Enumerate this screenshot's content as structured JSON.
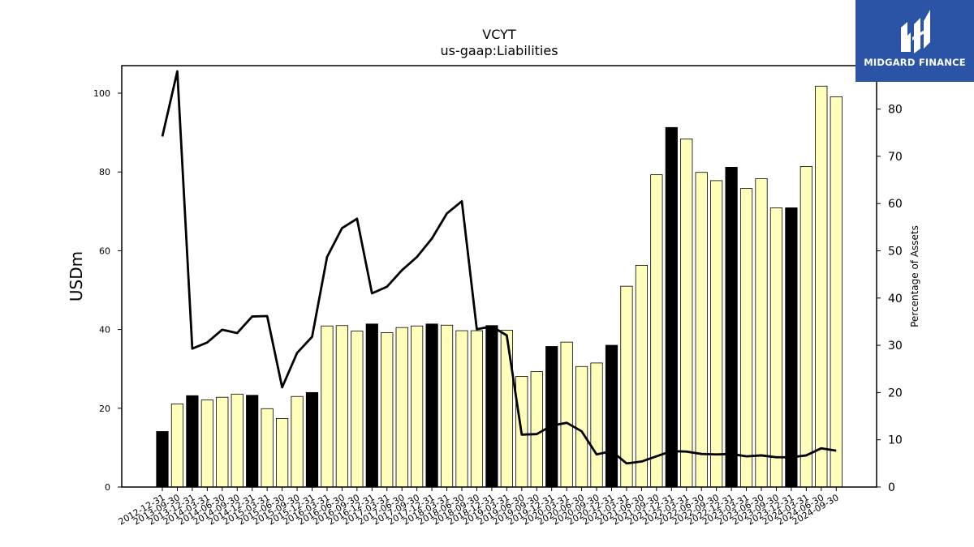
{
  "chart_data": {
    "type": "bar",
    "title": "VCYT",
    "subtitle": "us-gaap:Liabilities",
    "ylabel": "USDm",
    "y2label": "Percentage of Assets",
    "ylim": [
      0,
      107
    ],
    "y2lim": [
      0,
      89.2
    ],
    "yticks": [
      0,
      20,
      40,
      60,
      80,
      100
    ],
    "y2ticks": [
      0,
      10,
      20,
      30,
      40,
      50,
      60,
      70,
      80
    ],
    "categories": [
      "2012-12-31",
      "2013-09-30",
      "2013-12-31",
      "2014-03-31",
      "2014-06-30",
      "2014-09-30",
      "2014-12-31",
      "2015-03-31",
      "2015-06-30",
      "2015-09-30",
      "2015-12-31",
      "2016-03-31",
      "2016-06-30",
      "2016-09-30",
      "2016-12-31",
      "2017-03-31",
      "2017-06-30",
      "2017-09-30",
      "2017-12-31",
      "2018-03-31",
      "2018-06-30",
      "2018-09-30",
      "2018-12-31",
      "2019-03-31",
      "2019-06-30",
      "2019-09-30",
      "2019-12-31",
      "2020-03-31",
      "2020-06-30",
      "2020-09-30",
      "2020-12-31",
      "2021-03-31",
      "2021-06-30",
      "2021-09-30",
      "2021-12-31",
      "2022-03-31",
      "2022-06-30",
      "2022-09-30",
      "2022-12-31",
      "2023-03-31",
      "2023-06-30",
      "2023-09-30",
      "2023-12-31",
      "2024-03-31",
      "2024-06-30",
      "2024-09-30"
    ],
    "series": [
      {
        "type": "bar",
        "values": [
          14.1,
          21.1,
          23.2,
          22.1,
          22.8,
          23.6,
          23.3,
          19.9,
          17.4,
          23.0,
          24.0,
          40.9,
          41.0,
          39.6,
          41.4,
          39.2,
          40.5,
          40.9,
          41.4,
          41.1,
          39.7,
          39.7,
          41.0,
          39.8,
          28.1,
          29.3,
          35.7,
          36.8,
          30.6,
          31.5,
          36.0,
          51.0,
          56.3,
          79.3,
          91.3,
          88.4,
          79.9,
          77.8,
          81.2,
          75.8,
          78.3,
          70.9,
          70.9,
          81.4,
          101.8,
          99.1
        ],
        "year_end": [
          true,
          false,
          true,
          false,
          false,
          false,
          true,
          false,
          false,
          false,
          true,
          false,
          false,
          false,
          true,
          false,
          false,
          false,
          true,
          false,
          false,
          false,
          true,
          false,
          false,
          false,
          true,
          false,
          false,
          false,
          true,
          false,
          false,
          false,
          true,
          false,
          false,
          false,
          true,
          false,
          false,
          false,
          true,
          false,
          false,
          false
        ],
        "fill_color": "#ffffbb",
        "year_end_color": "#000000"
      },
      {
        "type": "line",
        "axis": "right",
        "values": [
          74.2,
          88.0,
          29.3,
          30.6,
          33.3,
          32.6,
          36.1,
          36.2,
          21.1,
          28.4,
          31.8,
          48.7,
          54.8,
          56.8,
          41.0,
          42.4,
          45.9,
          48.7,
          52.6,
          57.9,
          60.5,
          33.4,
          34.0,
          32.1,
          11.1,
          11.2,
          13.0,
          13.6,
          11.8,
          6.9,
          7.6,
          5.0,
          5.4,
          6.5,
          7.6,
          7.5,
          7.0,
          6.9,
          7.0,
          6.5,
          6.7,
          6.3,
          6.3,
          6.7,
          8.2,
          7.7
        ],
        "color": "#000000"
      }
    ]
  },
  "logo": {
    "text": "MIDGARD FINANCE",
    "bg_color": "#2b54a6"
  }
}
